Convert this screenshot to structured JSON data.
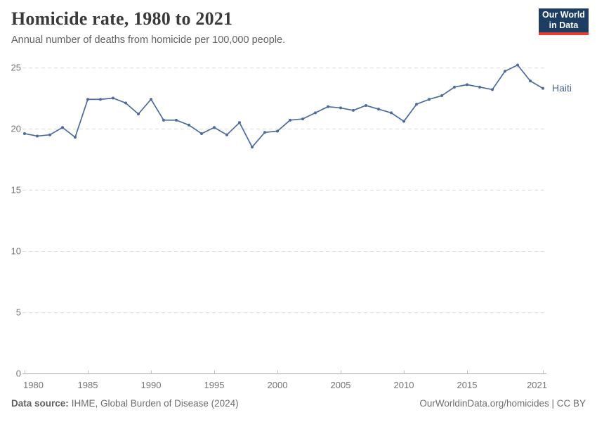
{
  "header": {
    "title": "Homicide rate, 1980 to 2021",
    "subtitle": "Annual number of deaths from homicide per 100,000 people.",
    "logo": {
      "line1": "Our World",
      "line2": "in Data",
      "bg_color": "#1d3d63",
      "accent_color": "#e63e36"
    }
  },
  "chart_data": {
    "type": "line",
    "title": "Homicide rate, 1980 to 2021",
    "xlabel": "",
    "ylabel": "",
    "grid": "horizontal-dashed",
    "legend_position": "end-of-line",
    "xlim": [
      1980,
      2021
    ],
    "ylim": [
      0,
      25
    ],
    "yticks": [
      0,
      5,
      10,
      15,
      20,
      25
    ],
    "xticks": [
      1980,
      1985,
      1990,
      1995,
      2000,
      2005,
      2010,
      2015,
      2021
    ],
    "x": [
      1980,
      1981,
      1982,
      1983,
      1984,
      1985,
      1986,
      1987,
      1988,
      1989,
      1990,
      1991,
      1992,
      1993,
      1994,
      1995,
      1996,
      1997,
      1998,
      1999,
      2000,
      2001,
      2002,
      2003,
      2004,
      2005,
      2006,
      2007,
      2008,
      2009,
      2010,
      2011,
      2012,
      2013,
      2014,
      2015,
      2016,
      2017,
      2018,
      2019,
      2020,
      2021
    ],
    "series": [
      {
        "name": "Haiti",
        "color": "#4C6A9C",
        "values": [
          19.6,
          19.4,
          19.5,
          20.1,
          19.3,
          22.4,
          22.4,
          22.5,
          22.1,
          21.2,
          22.4,
          20.7,
          20.7,
          20.3,
          19.6,
          20.1,
          19.5,
          20.5,
          18.5,
          19.7,
          19.8,
          20.7,
          20.8,
          21.3,
          21.8,
          21.7,
          21.5,
          21.9,
          21.6,
          21.3,
          20.6,
          22.0,
          22.4,
          22.7,
          23.4,
          23.6,
          23.4,
          23.2,
          24.7,
          25.2,
          23.9,
          23.3
        ]
      }
    ],
    "axis_colors": {
      "grid": "#dedede",
      "axis_line": "#a8a8a8",
      "tick": "#c4c4c4",
      "tick_label": "#757575"
    }
  },
  "footer": {
    "source_label": "Data source:",
    "source_text": "IHME, Global Burden of Disease (2024)",
    "right_text": "OurWorldinData.org/homicides | CC BY"
  }
}
